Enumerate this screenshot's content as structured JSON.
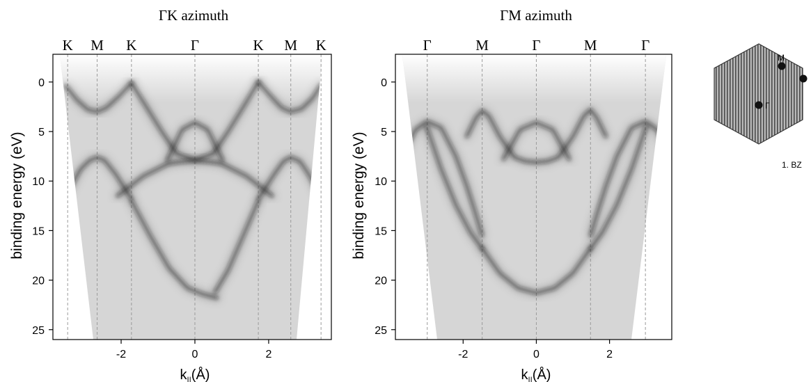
{
  "chart_data": [
    {
      "type": "heatmap",
      "title": "ΓK azimuth",
      "xlabel_main": "k",
      "xlabel_sub": "||",
      "xlabel_suffix": "(Å)",
      "ylabel": "binding energy (eV)",
      "xlim": [
        -3.85,
        3.7
      ],
      "ylim": [
        -2.8,
        26
      ],
      "y_inverted": true,
      "x_ticks": [
        -2,
        0,
        2
      ],
      "x_tick_labels": [
        "-2",
        "0",
        "2"
      ],
      "y_ticks": [
        0,
        5,
        10,
        15,
        20,
        25
      ],
      "y_tick_labels": [
        "0",
        "5",
        "10",
        "15",
        "20",
        "25"
      ],
      "symmetry_points": [
        {
          "label": "K",
          "k": -3.45
        },
        {
          "label": "M",
          "k": -2.65
        },
        {
          "label": "K",
          "k": -1.72
        },
        {
          "label": "Γ",
          "k": 0.0
        },
        {
          "label": "K",
          "k": 1.72
        },
        {
          "label": "M",
          "k": 2.6
        },
        {
          "label": "K",
          "k": 3.42
        }
      ],
      "bands": [
        {
          "k": [
            -3.5,
            -3.2,
            -2.9,
            -2.65,
            -2.4,
            -2.05,
            -1.72
          ],
          "e": [
            0.4,
            1.8,
            2.8,
            3.0,
            2.6,
            1.4,
            0.1
          ]
        },
        {
          "k": [
            -1.72,
            -1.3,
            -0.9,
            -0.5,
            0.0,
            0.5,
            0.9,
            1.3,
            1.72
          ],
          "e": [
            0.1,
            2.6,
            5.0,
            7.2,
            7.9,
            7.2,
            5.0,
            2.6,
            0.0
          ]
        },
        {
          "k": [
            1.72,
            2.05,
            2.35,
            2.6,
            2.9,
            3.2,
            3.42
          ],
          "e": [
            0.0,
            1.4,
            2.6,
            3.0,
            2.7,
            1.6,
            0.3
          ]
        },
        {
          "k": [
            -0.75,
            -0.35,
            0.0,
            0.35,
            0.75
          ],
          "e": [
            7.9,
            4.8,
            4.1,
            4.8,
            7.9
          ]
        },
        {
          "k": [
            -3.4,
            -3.1,
            -2.85,
            -2.65,
            -2.45,
            -2.15,
            -1.72
          ],
          "e": [
            10.8,
            8.8,
            7.9,
            7.6,
            7.9,
            9.3,
            11.8
          ]
        },
        {
          "k": [
            1.72,
            2.15,
            2.4,
            2.6,
            2.85,
            3.1,
            3.4
          ],
          "e": [
            11.8,
            9.3,
            8.0,
            7.6,
            8.0,
            9.4,
            11.5
          ]
        },
        {
          "k": [
            -2.1,
            -1.4,
            -0.7,
            0.0,
            0.7,
            1.4,
            2.1
          ],
          "e": [
            11.5,
            9.5,
            8.2,
            7.9,
            8.2,
            9.5,
            11.5
          ]
        },
        {
          "k": [
            -1.72,
            -1.2,
            -0.7,
            -0.2,
            0.2,
            0.6
          ],
          "e": [
            12.0,
            15.6,
            18.8,
            20.8,
            21.4,
            21.8
          ]
        },
        {
          "k": [
            1.72,
            1.3,
            0.9,
            0.55
          ],
          "e": [
            12.0,
            15.6,
            19.0,
            21.2
          ]
        }
      ]
    },
    {
      "type": "heatmap",
      "title": "ΓM azimuth",
      "xlabel_main": "k",
      "xlabel_sub": "||",
      "xlabel_suffix": "(Å)",
      "ylabel": "binding energy (eV)",
      "xlim": [
        -3.85,
        3.7
      ],
      "ylim": [
        -2.8,
        26
      ],
      "y_inverted": true,
      "x_ticks": [
        -2,
        0,
        2
      ],
      "x_tick_labels": [
        "-2",
        "0",
        "2"
      ],
      "y_ticks": [
        0,
        5,
        10,
        15,
        20,
        25
      ],
      "y_tick_labels": [
        "0",
        "5",
        "10",
        "15",
        "20",
        "25"
      ],
      "symmetry_points": [
        {
          "label": "Γ",
          "k": -2.98
        },
        {
          "label": "M",
          "k": -1.48
        },
        {
          "label": "Γ",
          "k": 0.0
        },
        {
          "label": "M",
          "k": 1.48
        },
        {
          "label": "Γ",
          "k": 2.98
        }
      ],
      "bands": [
        {
          "k": [
            -3.6,
            -3.3,
            -2.98,
            -2.6,
            -2.2,
            -1.9,
            -1.6,
            -1.48
          ],
          "e": [
            7.0,
            4.8,
            4.0,
            4.6,
            7.5,
            10.5,
            14.0,
            15.5
          ]
        },
        {
          "k": [
            -1.9,
            -1.65,
            -1.48,
            -1.3,
            -1.0,
            -0.6,
            -0.3,
            0.0,
            0.3,
            0.6,
            1.0,
            1.3,
            1.48,
            1.65,
            1.9
          ],
          "e": [
            5.5,
            3.6,
            2.9,
            3.4,
            5.5,
            7.6,
            8.0,
            8.1,
            8.0,
            7.6,
            5.5,
            3.4,
            2.8,
            3.6,
            5.5
          ]
        },
        {
          "k": [
            -0.9,
            -0.45,
            0.0,
            0.45,
            0.9
          ],
          "e": [
            7.8,
            4.8,
            4.1,
            4.8,
            7.8
          ]
        },
        {
          "k": [
            1.48,
            1.6,
            1.9,
            2.2,
            2.6,
            2.98,
            3.3,
            3.55
          ],
          "e": [
            15.5,
            14.0,
            10.5,
            7.5,
            4.6,
            4.0,
            4.8,
            6.8
          ]
        },
        {
          "k": [
            -3.0,
            -2.6,
            -2.2,
            -1.8,
            -1.48
          ],
          "e": [
            4.5,
            8.8,
            12.4,
            15.2,
            16.8
          ]
        },
        {
          "k": [
            -1.48,
            -1.0,
            -0.5,
            0.0,
            0.5,
            1.0,
            1.48
          ],
          "e": [
            16.8,
            19.3,
            20.8,
            21.3,
            20.8,
            19.3,
            16.8
          ]
        },
        {
          "k": [
            1.48,
            1.8,
            2.2,
            2.6,
            3.0
          ],
          "e": [
            16.8,
            15.2,
            12.4,
            8.8,
            4.5
          ]
        }
      ]
    }
  ],
  "bz_inset": {
    "point_labels": [
      "M",
      "Γ"
    ],
    "caption": "1. BZ"
  },
  "colors": {
    "band": "#1c1c1c",
    "background_gray": "#d6d6d6",
    "line": "#000000",
    "grid": "#9a9a9a"
  }
}
